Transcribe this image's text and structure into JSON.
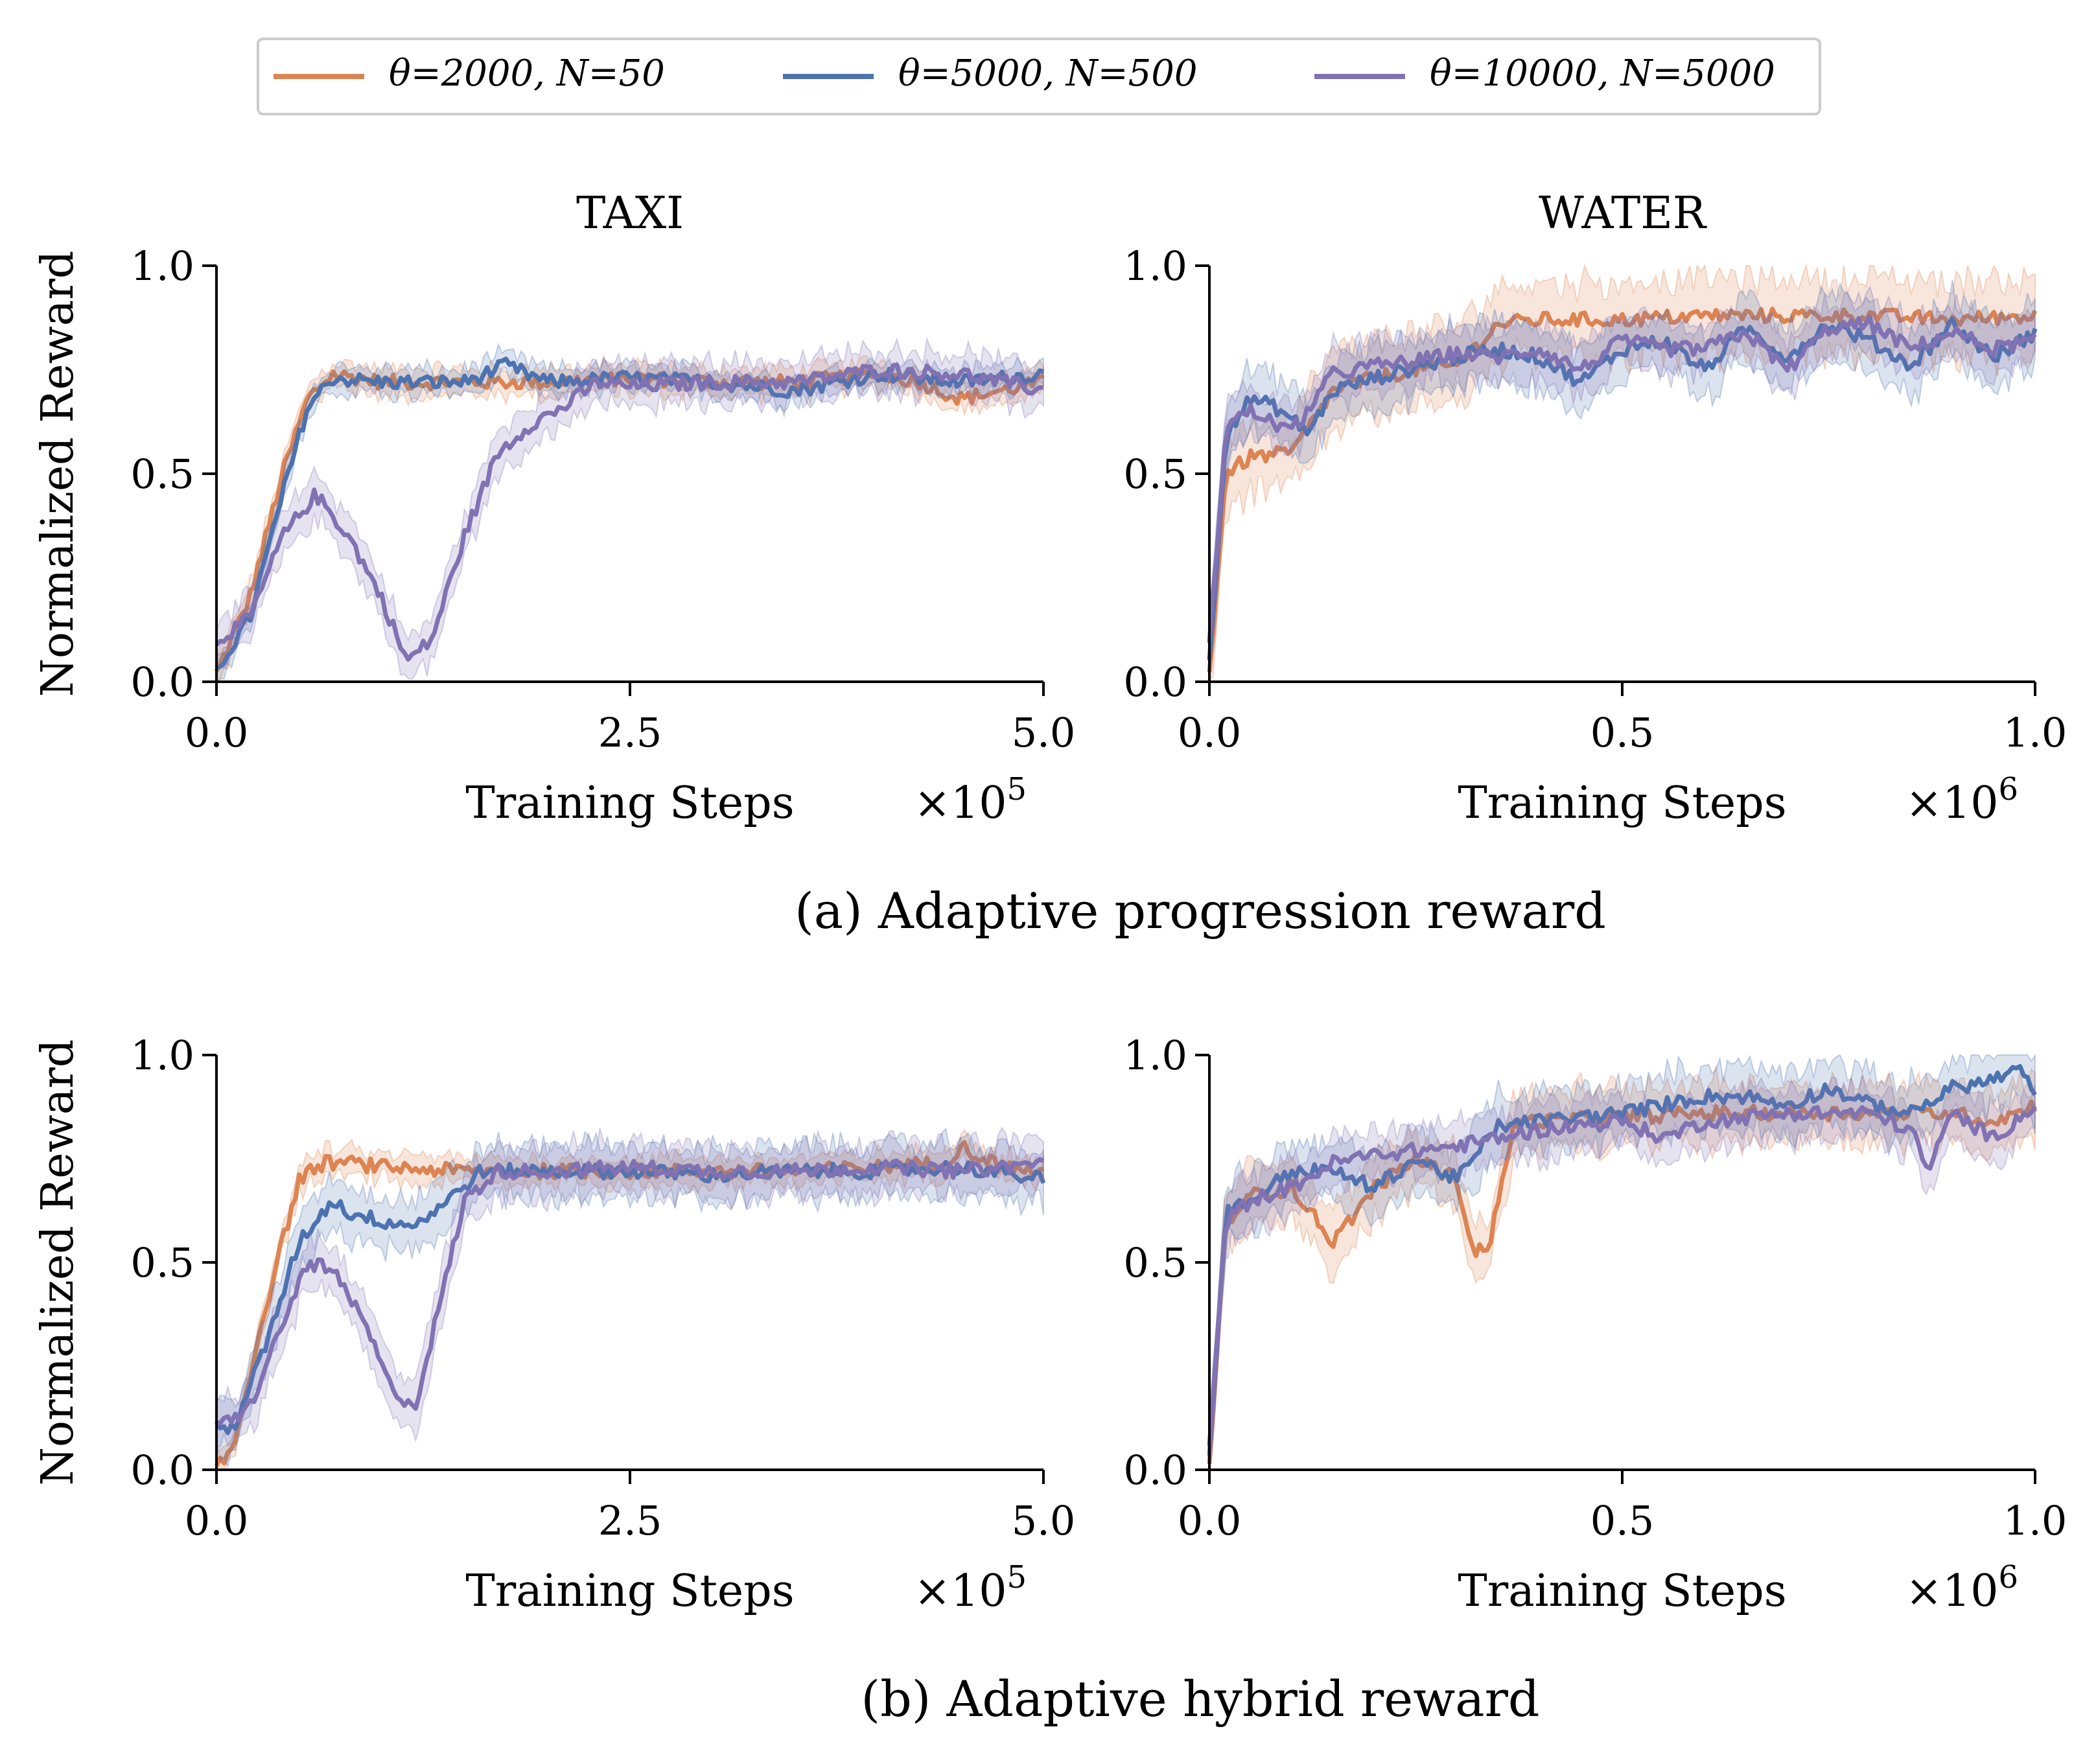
{
  "legend": {
    "entries": [
      {
        "label": "θ=2000, N=50",
        "color": "#dd8452"
      },
      {
        "label": "θ=5000, N=500",
        "color": "#4c72b0"
      },
      {
        "label": "θ=10000, N=5000",
        "color": "#8172b3"
      }
    ]
  },
  "captions": {
    "a": "(a) Adaptive progression reward",
    "b": "(b) Adaptive hybrid reward"
  },
  "chart_data": [
    {
      "type": "line",
      "panel": "a-left",
      "title": "TAXI",
      "xlabel": "Training Steps",
      "ylabel": "Normalized Reward",
      "x_multiplier": "×10^5",
      "xlim": [
        0,
        5.0
      ],
      "ylim": [
        0,
        1.0
      ],
      "xticks": [
        "0.0",
        "2.5",
        "5.0"
      ],
      "yticks": [
        "0.0",
        "0.5",
        "1.0"
      ],
      "series": [
        {
          "name": "θ=2000, N=50",
          "color": "#dd8452",
          "x": [
            0,
            0.2,
            0.4,
            0.55,
            0.7,
            1.0,
            1.5,
            2.0,
            2.5,
            3.0,
            3.5,
            4.0,
            4.25,
            4.5,
            5.0
          ],
          "y": [
            0.02,
            0.2,
            0.5,
            0.68,
            0.74,
            0.72,
            0.72,
            0.72,
            0.73,
            0.72,
            0.72,
            0.74,
            0.72,
            0.68,
            0.72
          ],
          "band": 0.03
        },
        {
          "name": "θ=5000, N=500",
          "color": "#4c72b0",
          "x": [
            0,
            0.2,
            0.4,
            0.55,
            0.7,
            1.0,
            1.5,
            1.75,
            2.0,
            2.5,
            3.0,
            3.5,
            4.0,
            4.5,
            5.0
          ],
          "y": [
            0.03,
            0.15,
            0.45,
            0.66,
            0.73,
            0.72,
            0.72,
            0.76,
            0.72,
            0.73,
            0.72,
            0.7,
            0.74,
            0.72,
            0.74
          ],
          "band": 0.03
        },
        {
          "name": "θ=10000, N=5000",
          "color": "#8172b3",
          "x": [
            0,
            0.2,
            0.4,
            0.6,
            0.8,
            1.0,
            1.15,
            1.3,
            1.5,
            1.7,
            1.9,
            2.1,
            2.3,
            2.5,
            3.0,
            3.5,
            4.0,
            4.5,
            5.0
          ],
          "y": [
            0.1,
            0.15,
            0.35,
            0.45,
            0.35,
            0.2,
            0.05,
            0.1,
            0.35,
            0.55,
            0.62,
            0.66,
            0.72,
            0.71,
            0.72,
            0.72,
            0.75,
            0.74,
            0.7
          ],
          "band": 0.05
        }
      ]
    },
    {
      "type": "line",
      "panel": "a-right",
      "title": "WATER",
      "xlabel": "Training Steps",
      "ylabel": "",
      "x_multiplier": "×10^6",
      "xlim": [
        0,
        1.0
      ],
      "ylim": [
        0,
        1.0
      ],
      "xticks": [
        "0.0",
        "0.5",
        "1.0"
      ],
      "yticks": [
        "0.0",
        "0.5",
        "1.0"
      ],
      "series": [
        {
          "name": "θ=2000, N=50",
          "color": "#dd8452",
          "x": [
            0,
            0.02,
            0.05,
            0.1,
            0.15,
            0.2,
            0.25,
            0.3,
            0.35,
            0.4,
            0.5,
            0.6,
            0.7,
            0.8,
            0.9,
            1.0
          ],
          "y": [
            0.02,
            0.5,
            0.54,
            0.55,
            0.7,
            0.73,
            0.75,
            0.76,
            0.86,
            0.87,
            0.87,
            0.88,
            0.88,
            0.88,
            0.87,
            0.88
          ],
          "band": 0.09
        },
        {
          "name": "θ=5000, N=500",
          "color": "#4c72b0",
          "x": [
            0,
            0.02,
            0.05,
            0.08,
            0.12,
            0.15,
            0.2,
            0.3,
            0.35,
            0.4,
            0.45,
            0.5,
            0.55,
            0.6,
            0.65,
            0.7,
            0.75,
            0.8,
            0.85,
            0.9,
            0.95,
            1.0
          ],
          "y": [
            0.05,
            0.6,
            0.68,
            0.66,
            0.6,
            0.7,
            0.73,
            0.78,
            0.8,
            0.78,
            0.72,
            0.8,
            0.82,
            0.75,
            0.85,
            0.78,
            0.86,
            0.82,
            0.76,
            0.86,
            0.78,
            0.84
          ],
          "band": 0.07
        },
        {
          "name": "θ=10000, N=5000",
          "color": "#8172b3",
          "x": [
            0,
            0.02,
            0.05,
            0.1,
            0.15,
            0.2,
            0.25,
            0.3,
            0.35,
            0.4,
            0.45,
            0.5,
            0.55,
            0.6,
            0.65,
            0.7,
            0.75,
            0.8,
            0.85,
            0.9,
            0.95,
            1.0
          ],
          "y": [
            0.08,
            0.62,
            0.65,
            0.6,
            0.74,
            0.76,
            0.77,
            0.79,
            0.78,
            0.8,
            0.75,
            0.82,
            0.8,
            0.8,
            0.84,
            0.75,
            0.85,
            0.86,
            0.8,
            0.84,
            0.8,
            0.82
          ],
          "band": 0.06
        }
      ]
    },
    {
      "type": "line",
      "panel": "b-left",
      "title": "",
      "xlabel": "Training Steps",
      "ylabel": "Normalized Reward",
      "x_multiplier": "×10^5",
      "xlim": [
        0,
        5.0
      ],
      "ylim": [
        0,
        1.0
      ],
      "xticks": [
        "0.0",
        "2.5",
        "5.0"
      ],
      "yticks": [
        "0.0",
        "0.5",
        "1.0"
      ],
      "series": [
        {
          "name": "θ=2000, N=50",
          "color": "#dd8452",
          "x": [
            0,
            0.1,
            0.3,
            0.5,
            0.65,
            0.8,
            1.0,
            1.5,
            2.0,
            2.5,
            3.0,
            3.5,
            4.0,
            4.4,
            4.5,
            4.75,
            5.0
          ],
          "y": [
            0.0,
            0.05,
            0.4,
            0.7,
            0.74,
            0.74,
            0.73,
            0.72,
            0.72,
            0.72,
            0.72,
            0.72,
            0.73,
            0.74,
            0.78,
            0.73,
            0.72
          ],
          "band": 0.03
        },
        {
          "name": "θ=5000, N=500",
          "color": "#4c72b0",
          "x": [
            0,
            0.1,
            0.3,
            0.5,
            0.7,
            0.8,
            1.0,
            1.2,
            1.4,
            1.6,
            2.0,
            2.5,
            3.0,
            3.5,
            4.0,
            4.5,
            5.0
          ],
          "y": [
            0.1,
            0.1,
            0.3,
            0.55,
            0.65,
            0.62,
            0.6,
            0.59,
            0.65,
            0.72,
            0.72,
            0.72,
            0.71,
            0.72,
            0.72,
            0.73,
            0.7
          ],
          "band": 0.06
        },
        {
          "name": "θ=10000, N=5000",
          "color": "#8172b3",
          "x": [
            0,
            0.2,
            0.4,
            0.55,
            0.7,
            0.9,
            1.05,
            1.2,
            1.35,
            1.5,
            1.7,
            2.0,
            2.5,
            3.0,
            3.5,
            4.0,
            4.5,
            5.0
          ],
          "y": [
            0.1,
            0.15,
            0.35,
            0.5,
            0.48,
            0.35,
            0.2,
            0.15,
            0.4,
            0.65,
            0.72,
            0.72,
            0.73,
            0.72,
            0.72,
            0.73,
            0.72,
            0.74
          ],
          "band": 0.06
        }
      ]
    },
    {
      "type": "line",
      "panel": "b-right",
      "title": "",
      "xlabel": "Training Steps",
      "ylabel": "",
      "x_multiplier": "×10^6",
      "xlim": [
        0,
        1.0
      ],
      "ylim": [
        0,
        1.0
      ],
      "xticks": [
        "0.0",
        "0.5",
        "1.0"
      ],
      "yticks": [
        "0.0",
        "0.5",
        "1.0"
      ],
      "series": [
        {
          "name": "θ=2000, N=50",
          "color": "#dd8452",
          "x": [
            0,
            0.02,
            0.05,
            0.1,
            0.15,
            0.2,
            0.25,
            0.3,
            0.32,
            0.34,
            0.37,
            0.4,
            0.5,
            0.6,
            0.7,
            0.8,
            0.9,
            0.95,
            1.0
          ],
          "y": [
            0.02,
            0.6,
            0.66,
            0.68,
            0.55,
            0.68,
            0.75,
            0.7,
            0.52,
            0.55,
            0.84,
            0.84,
            0.85,
            0.86,
            0.86,
            0.86,
            0.86,
            0.84,
            0.88
          ],
          "band": 0.07
        },
        {
          "name": "θ=5000, N=500",
          "color": "#4c72b0",
          "x": [
            0,
            0.02,
            0.05,
            0.1,
            0.15,
            0.2,
            0.25,
            0.3,
            0.35,
            0.4,
            0.5,
            0.6,
            0.65,
            0.7,
            0.75,
            0.8,
            0.85,
            0.9,
            0.95,
            0.98,
            1.0
          ],
          "y": [
            0.05,
            0.62,
            0.65,
            0.72,
            0.72,
            0.68,
            0.75,
            0.7,
            0.83,
            0.84,
            0.86,
            0.9,
            0.9,
            0.88,
            0.92,
            0.88,
            0.86,
            0.92,
            0.94,
            0.97,
            0.9
          ],
          "band": 0.07
        },
        {
          "name": "θ=10000, N=5000",
          "color": "#8172b3",
          "x": [
            0,
            0.02,
            0.05,
            0.1,
            0.15,
            0.2,
            0.3,
            0.4,
            0.5,
            0.55,
            0.6,
            0.7,
            0.8,
            0.85,
            0.87,
            0.9,
            0.95,
            1.0
          ],
          "y": [
            0.05,
            0.6,
            0.65,
            0.68,
            0.74,
            0.76,
            0.78,
            0.82,
            0.84,
            0.8,
            0.84,
            0.86,
            0.86,
            0.82,
            0.72,
            0.86,
            0.8,
            0.88
          ],
          "band": 0.06
        }
      ]
    }
  ]
}
